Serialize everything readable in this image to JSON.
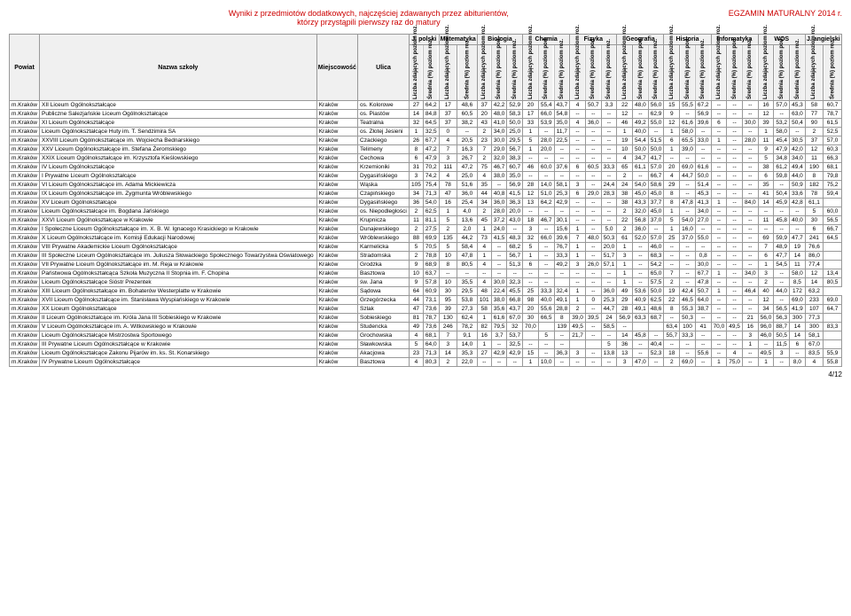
{
  "header": {
    "title_line1": "Wyniki z przedmiotów dodatkowych, najczęściej zdawanych przez abiturientów,",
    "title_line2": "którzy przystąpili pierwszy raz do matury",
    "exam_label": "EGZAMIN MATURALNY 2014 r."
  },
  "columns": {
    "powiat": "Powiat",
    "nazwa": "Nazwa szkoły",
    "miejsc": "Miejscowość",
    "ulica": "Ulica"
  },
  "subjects": [
    "J. polski",
    "Matematyka",
    "Biologia",
    "Chemia",
    "Fizyka",
    "Geografia",
    "Historia",
    "Informatyka",
    "WOS",
    "J. angielski"
  ],
  "subcols": [
    "Liczba zdających poziom roz.",
    "Średnia (%) poziom roz.",
    "Liczba zdających poziom pod.",
    "Średnia (%) poziom pod."
  ],
  "subcols_ang": [
    "Liczba zdających poziom roz.",
    "Średnia (%) poziom roz."
  ],
  "rows": [
    {
      "p": "m.Kraków",
      "n": "XII Liceum Ogólnokształcące",
      "m": "Kraków",
      "u": "os. Kolorowe",
      "d": [
        "27",
        "64,2",
        "17",
        "48,6",
        "37",
        "42,2",
        "52,9",
        "20",
        "55,4",
        "43,7",
        "4",
        "50,7",
        "3,3",
        "22",
        "48,0",
        "56,0",
        "15",
        "55,5",
        "67,2",
        "--",
        "--",
        "--",
        "16",
        "57,0",
        "45,3",
        "58",
        "60,7"
      ]
    },
    {
      "p": "m.Kraków",
      "n": "Publiczne Salezjańskie Liceum Ogólnokształcące",
      "m": "Kraków",
      "u": "os. Piastów",
      "d": [
        "14",
        "84,8",
        "37",
        "60,5",
        "20",
        "48,0",
        "58,3",
        "17",
        "66,0",
        "54,8",
        "--",
        "--",
        "--",
        "12",
        "--",
        "62,9",
        "9",
        "--",
        "56,9",
        "--",
        "--",
        "--",
        "12",
        "--",
        "63,0",
        "77",
        "78,7"
      ]
    },
    {
      "p": "m.Kraków",
      "n": "XI Liceum Ogólnokształcące",
      "m": "Kraków",
      "u": "Teatralna",
      "d": [
        "32",
        "64,5",
        "37",
        "38,2",
        "43",
        "41,0",
        "50,0",
        "33",
        "53,9",
        "35,0",
        "4",
        "36,0",
        "--",
        "46",
        "49,2",
        "55,0",
        "12",
        "61,6",
        "39,6",
        "6",
        "--",
        "30,0",
        "39",
        "53,2",
        "50,4",
        "90",
        "61,5"
      ]
    },
    {
      "p": "m.Kraków",
      "n": "Liceum Ogólnokształcące Huty im. T. Sendzimira SA",
      "m": "Kraków",
      "u": "os. Złotej Jesieni",
      "d": [
        "1",
        "32,5",
        "0",
        "--",
        "2",
        "34,0",
        "25,0",
        "1",
        "--",
        "11,7",
        "--",
        "--",
        "--",
        "1",
        "40,0",
        "--",
        "1",
        "58,0",
        "--",
        "--",
        "--",
        "--",
        "1",
        "58,0",
        "--",
        "2",
        "52,5"
      ]
    },
    {
      "p": "m.Kraków",
      "n": "XXVIII Liceum Ogólnokształcące im. Wojciecha Bednarskiego",
      "m": "Kraków",
      "u": "Czackiego",
      "d": [
        "26",
        "67,7",
        "4",
        "20,5",
        "23",
        "30,0",
        "29,5",
        "5",
        "28,0",
        "22,5",
        "--",
        "--",
        "--",
        "19",
        "54,4",
        "51,5",
        "6",
        "65,5",
        "33,0",
        "1",
        "--",
        "28,0",
        "11",
        "45,4",
        "30,5",
        "37",
        "57,0"
      ]
    },
    {
      "p": "m.Kraków",
      "n": "XXV Liceum Ogólnokształcące im. Stefana Żeromskiego",
      "m": "Kraków",
      "u": "Telimeny",
      "d": [
        "8",
        "47,2",
        "7",
        "16,3",
        "7",
        "29,0",
        "56,7",
        "1",
        "20,0",
        "--",
        "--",
        "--",
        "--",
        "10",
        "50,0",
        "50,0",
        "1",
        "39,0",
        "--",
        "--",
        "--",
        "--",
        "9",
        "47,9",
        "42,0",
        "12",
        "60,3"
      ]
    },
    {
      "p": "m.Kraków",
      "n": "XXIX Liceum Ogólnokształcące im. Krzysztofa Kieślowskiego",
      "m": "Kraków",
      "u": "Cechowa",
      "d": [
        "6",
        "47,9",
        "3",
        "26,7",
        "2",
        "32,0",
        "38,3",
        "--",
        "--",
        "--",
        "--",
        "--",
        "--",
        "4",
        "34,7",
        "41,7",
        "--",
        "--",
        "--",
        "--",
        "--",
        "--",
        "5",
        "34,8",
        "34,0",
        "11",
        "66,3"
      ]
    },
    {
      "p": "m.Kraków",
      "n": "IV Liceum Ogólnokształcące",
      "m": "Kraków",
      "u": "Krzemioniki",
      "d": [
        "31",
        "70,2",
        "111",
        "47,2",
        "75",
        "46,7",
        "60,7",
        "46",
        "60,0",
        "37,6",
        "6",
        "60,5",
        "33,3",
        "65",
        "61,1",
        "57,0",
        "20",
        "69,0",
        "61,6",
        "--",
        "--",
        "--",
        "38",
        "61,2",
        "49,4",
        "190",
        "68,1"
      ]
    },
    {
      "p": "m.Kraków",
      "n": "I Prywatne Liceum Ogólnokształcące",
      "m": "Kraków",
      "u": "Dygasińskiego",
      "d": [
        "3",
        "74,2",
        "4",
        "25,0",
        "4",
        "38,0",
        "35,0",
        "--",
        "--",
        "--",
        "--",
        "--",
        "--",
        "2",
        "--",
        "66,7",
        "4",
        "44,7",
        "50,0",
        "--",
        "--",
        "--",
        "6",
        "59,8",
        "44,0",
        "8",
        "79,8"
      ]
    },
    {
      "p": "m.Kraków",
      "n": "VI Liceum Ogólnokształcące im. Adama Mickiewicza",
      "m": "Kraków",
      "u": "Wąska",
      "d": [
        "105",
        "75,4",
        "78",
        "51,6",
        "35",
        "--",
        "56,9",
        "28",
        "14,0",
        "58,1",
        "3",
        "--",
        "24,4",
        "24",
        "54,0",
        "58,6",
        "29",
        "--",
        "51,4",
        "--",
        "--",
        "--",
        "35",
        "--",
        "50,9",
        "182",
        "75,2"
      ]
    },
    {
      "p": "m.Kraków",
      "n": "IX Liceum Ogólnokształcące im. Zygmunta Wróblewskiego",
      "m": "Kraków",
      "u": "Czapińskiego",
      "d": [
        "34",
        "71,3",
        "47",
        "36,0",
        "44",
        "40,8",
        "41,5",
        "12",
        "51,0",
        "25,3",
        "6",
        "29,0",
        "28,3",
        "38",
        "45,0",
        "45,0",
        "8",
        "--",
        "45,3",
        "--",
        "--",
        "--",
        "41",
        "50,4",
        "33,6",
        "78",
        "59,4"
      ]
    },
    {
      "p": "m.Kraków",
      "n": "XV Liceum Ogólnokształcące",
      "m": "Kraków",
      "u": "Dygasińskiego",
      "d": [
        "36",
        "54,0",
        "16",
        "25,4",
        "34",
        "36,0",
        "36,3",
        "13",
        "64,2",
        "42,9",
        "--",
        "--",
        "--",
        "38",
        "43,3",
        "37,7",
        "8",
        "47,8",
        "41,3",
        "1",
        "--",
        "84,0",
        "14",
        "45,9",
        "42,8",
        "61,1",
        ""
      ]
    },
    {
      "p": "m.Kraków",
      "n": "Liceum Ogólnokształcące im. Bogdana Jańskiego",
      "m": "Kraków",
      "u": "os. Niepodległości",
      "d": [
        "2",
        "62,5",
        "1",
        "4,0",
        "2",
        "28,0",
        "20,0",
        "--",
        "--",
        "--",
        "--",
        "--",
        "--",
        "2",
        "32,0",
        "45,0",
        "1",
        "--",
        "34,0",
        "--",
        "--",
        "--",
        "--",
        "--",
        "--",
        "5",
        "60,0"
      ]
    },
    {
      "p": "m.Kraków",
      "n": "XXVI Liceum Ogólnokształcące w Krakowie",
      "m": "Kraków",
      "u": "Krupnicza",
      "d": [
        "11",
        "81,1",
        "5",
        "13,6",
        "45",
        "37,2",
        "43,0",
        "18",
        "46,7",
        "30,1",
        "--",
        "--",
        "--",
        "22",
        "56,8",
        "37,0",
        "5",
        "54,0",
        "27,0",
        "--",
        "--",
        "--",
        "11",
        "45,8",
        "40,0",
        "30",
        "56,5"
      ]
    },
    {
      "p": "m.Kraków",
      "n": "I Społeczne Liceum Ogólnokształcące im. X. B. W. Ignacego Krasickiego w Krakowie",
      "m": "Kraków",
      "u": "Dunajewskiego",
      "d": [
        "2",
        "27,5",
        "2",
        "2,0",
        "1",
        "24,0",
        "--",
        "3",
        "--",
        "15,6",
        "1",
        "--",
        "5,0",
        "2",
        "36,0",
        "--",
        "1",
        "16,0",
        "--",
        "--",
        "--",
        "--",
        "--",
        "--",
        "--",
        "6",
        "66,7"
      ]
    },
    {
      "p": "m.Kraków",
      "n": "X Liceum Ogólnokształcące im. Komisji Edukacji Narodowej",
      "m": "Kraków",
      "u": "Wróblewskiego",
      "d": [
        "88",
        "69,9",
        "135",
        "44,2",
        "73",
        "41,5",
        "48,3",
        "32",
        "66,0",
        "39,6",
        "7",
        "48,0",
        "50,3",
        "61",
        "52,0",
        "57,0",
        "25",
        "37,0",
        "55,0",
        "--",
        "--",
        "--",
        "69",
        "59,9",
        "47,7",
        "241",
        "64,5"
      ]
    },
    {
      "p": "m.Kraków",
      "n": "VIII Prywatne Akademickie Liceum Ogólnokształcące",
      "m": "Kraków",
      "u": "Karmelicka",
      "d": [
        "5",
        "70,5",
        "5",
        "58,4",
        "4",
        "--",
        "68,2",
        "5",
        "--",
        "76,7",
        "1",
        "--",
        "20,0",
        "1",
        "--",
        "46,0",
        "--",
        "--",
        "--",
        "--",
        "--",
        "--",
        "7",
        "48,9",
        "19",
        "76,6",
        ""
      ]
    },
    {
      "p": "m.Kraków",
      "n": "III Społeczne Liceum Ogólnokształcące im. Juliusza Słowackiego Społecznego Towarzystwa Oświatowego",
      "m": "Kraków",
      "u": "Stradomska",
      "d": [
        "2",
        "78,8",
        "10",
        "47,8",
        "1",
        "--",
        "56,7",
        "1",
        "--",
        "33,3",
        "1",
        "--",
        "51,7",
        "3",
        "--",
        "68,3",
        "--",
        "--",
        "0,8",
        "--",
        "--",
        "--",
        "6",
        "47,7",
        "14",
        "86,0",
        ""
      ]
    },
    {
      "p": "m.Kraków",
      "n": "VII Prywatne Liceum Ogólnokształcące im. M. Reja w Krakowie",
      "m": "Kraków",
      "u": "Grodzka",
      "d": [
        "9",
        "68,9",
        "8",
        "80,5",
        "4",
        "--",
        "51,3",
        "6",
        "--",
        "49,2",
        "3",
        "26,0",
        "57,1",
        "1",
        "--",
        "54,2",
        "--",
        "--",
        "30,0",
        "--",
        "--",
        "--",
        "1",
        "54,5",
        "11",
        "77,4",
        ""
      ]
    },
    {
      "p": "m.Kraków",
      "n": "Państwowa Ogólnokształcąca Szkoła Muzyczna II Stopnia im. F. Chopina",
      "m": "Kraków",
      "u": "Basztowa",
      "d": [
        "10",
        "63,7",
        "--",
        "--",
        "--",
        "--",
        "--",
        "--",
        "--",
        "--",
        "--",
        "--",
        "--",
        "1",
        "--",
        "65,0",
        "7",
        "--",
        "67,7",
        "1",
        "--",
        "34,0",
        "3",
        "--",
        "58,0",
        "12",
        "13,4"
      ]
    },
    {
      "p": "m.Kraków",
      "n": "Liceum Ogólnokształcące Sióstr Prezentek",
      "m": "Kraków",
      "u": "św. Jana",
      "d": [
        "9",
        "57,8",
        "10",
        "35,5",
        "4",
        "30,0",
        "32,3",
        "--",
        "--",
        "",
        "--",
        "--",
        "--",
        "1",
        "--",
        "57,5",
        "2",
        "--",
        "47,8",
        "--",
        "--",
        "--",
        "2",
        "--",
        "8,5",
        "14",
        "80,5"
      ]
    },
    {
      "p": "m.Kraków",
      "n": "XIII Liceum Ogólnokształcące im. Bohaterów Westerplatte w Krakowie",
      "m": "Kraków",
      "u": "Sądowa",
      "d": [
        "64",
        "60,9",
        "30",
        "29,5",
        "48",
        "22,4",
        "45,5",
        "25",
        "33,3",
        "32,4",
        "1",
        "--",
        "36,0",
        "49",
        "53,6",
        "50,0",
        "19",
        "42,4",
        "50,7",
        "1",
        "--",
        "46,4",
        "40",
        "44,0",
        "172",
        "63,2"
      ]
    },
    {
      "p": "m.Kraków",
      "n": "XVII Liceum Ogólnokształcące im. Stanisława Wyspiańskiego w Krakowie",
      "m": "Kraków",
      "u": "Grzegórzecka",
      "d": [
        "44",
        "73,1",
        "95",
        "53,8",
        "101",
        "38,0",
        "66,8",
        "98",
        "40,0",
        "49,1",
        "1",
        "0",
        "25,3",
        "29",
        "40,9",
        "62,5",
        "22",
        "46,5",
        "64,0",
        "--",
        "--",
        "--",
        "12",
        "--",
        "69,0",
        "233",
        "69,0"
      ]
    },
    {
      "p": "m.Kraków",
      "n": "XX Liceum Ogólnokształcące",
      "m": "Kraków",
      "u": "Szlak",
      "d": [
        "47",
        "73,6",
        "39",
        "27,3",
        "58",
        "35,6",
        "43,7",
        "20",
        "55,6",
        "28,8",
        "2",
        "--",
        "44,7",
        "28",
        "49,1",
        "48,6",
        "8",
        "55,3",
        "38,7",
        "--",
        "--",
        "--",
        "34",
        "56,5",
        "41,9",
        "107",
        "64,7"
      ]
    },
    {
      "p": "m.Kraków",
      "n": "II Liceum Ogólnokształcące im. Króla Jana III Sobieskiego w Krakowie",
      "m": "Kraków",
      "u": "Sobieskiego",
      "d": [
        "81",
        "78,7",
        "130",
        "62,4",
        "1",
        "61,6",
        "67,0",
        "30",
        "66,5",
        "8",
        "39,0",
        "39,5",
        "24",
        "56,9",
        "63,3",
        "68,7",
        "--",
        "50,3",
        "--",
        "--",
        "--",
        "21",
        "56,0",
        "56,3",
        "300",
        "77,3",
        ""
      ]
    },
    {
      "p": "m.Kraków",
      "n": "V Liceum Ogólnokształcące im. A. Witkowskiego w Krakowie",
      "m": "Kraków",
      "u": "Studencka",
      "d": [
        "49",
        "73,6",
        "246",
        "78,2",
        "82",
        "79,5",
        "32",
        "70,0",
        "",
        "139",
        "49,5",
        "--",
        "58,5",
        "--",
        "",
        "",
        "63,4",
        "100",
        "41",
        "70,0",
        "49,5",
        "16",
        "96,0",
        "88,7",
        "14",
        "300",
        "83,3"
      ]
    },
    {
      "p": "m.Kraków",
      "n": "Liceum Ogólnokształcące Mistrzostwa Sportowego",
      "m": "Kraków",
      "u": "Grochowska",
      "d": [
        "4",
        "68,1",
        "7",
        "9,1",
        "16",
        "3,7",
        "53,7",
        "",
        "5",
        "--",
        "21,7",
        "--",
        "--",
        "14",
        "45,8",
        "--",
        "55,7",
        "33,3",
        "--",
        "--",
        "--",
        "3",
        "46,0",
        "50,5",
        "14",
        "58,1",
        ""
      ]
    },
    {
      "p": "m.Kraków",
      "n": "III Prywatne Liceum Ogólnokształcące w Krakowie",
      "m": "Kraków",
      "u": "Sławkowska",
      "d": [
        "5",
        "64,0",
        "3",
        "14,0",
        "1",
        "--",
        "32,5",
        "--",
        "--",
        "--",
        "",
        "",
        "5",
        "36",
        "--",
        "40,4",
        "--",
        "--",
        "--",
        "--",
        "--",
        "1",
        "--",
        "11,5",
        "6",
        "67,0",
        ""
      ]
    },
    {
      "p": "m.Kraków",
      "n": "Liceum Ogólnokształcące Zakonu Pijarów im. ks. St. Konarskiego",
      "m": "Kraków",
      "u": "Akacjowa",
      "d": [
        "23",
        "71,3",
        "14",
        "35,3",
        "27",
        "42,9",
        "42,9",
        "15",
        "--",
        "36,3",
        "3",
        "--",
        "13,8",
        "13",
        "--",
        "52,3",
        "18",
        "--",
        "55,6",
        "--",
        "4",
        "--",
        "49,5",
        "3",
        "--",
        "83,5",
        "55,9"
      ]
    },
    {
      "p": "m.Kraków",
      "n": "IV Prywatne Liceum Ogólnokształcące",
      "m": "Kraków",
      "u": "Basztowa",
      "d": [
        "4",
        "80,3",
        "2",
        "22,0",
        "--",
        "--",
        "--",
        "1",
        "10,0",
        "--",
        "--",
        "--",
        "--",
        "3",
        "47,0",
        "--",
        "2",
        "69,0",
        "--",
        "1",
        "75,0",
        "--",
        "1",
        "--",
        "8,0",
        "4",
        "55,8"
      ]
    }
  ],
  "footer": "4/12"
}
